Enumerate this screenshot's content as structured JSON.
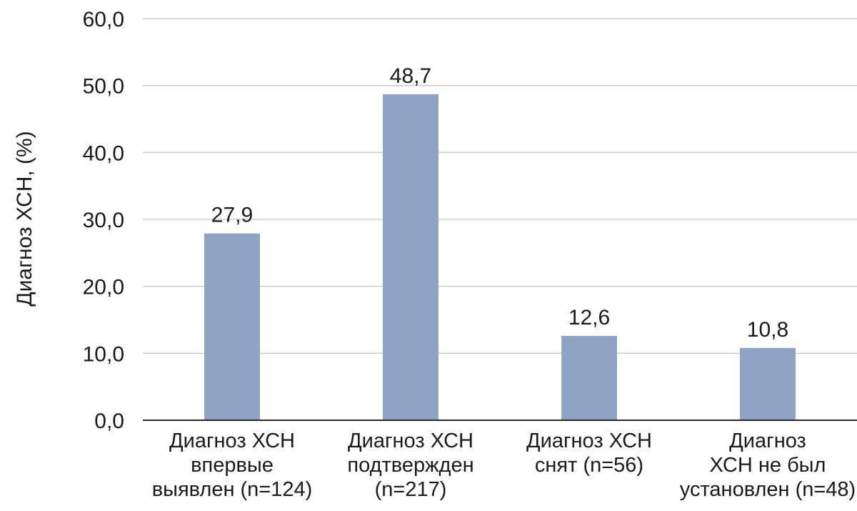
{
  "chart_data": {
    "type": "bar",
    "categories": [
      [
        "Диагноз ХСН",
        "впервые",
        "выявлен (n=124)"
      ],
      [
        "Диагноз ХСН",
        "подтвержден",
        "(n=217)"
      ],
      [
        "Диагноз ХСН",
        "снят (n=56)"
      ],
      [
        "Диагноз",
        "ХСН не был",
        "установлен (n=48)"
      ]
    ],
    "values": [
      27.9,
      48.7,
      12.6,
      10.8
    ],
    "value_labels": [
      "27,9",
      "48,7",
      "12,6",
      "10,8"
    ],
    "ylabel": "Диагноз ХСН, (%)",
    "xlabel": "",
    "ylim": [
      0,
      60
    ],
    "yticks": [
      0,
      10,
      20,
      30,
      40,
      50,
      60
    ],
    "ytick_labels": [
      "0,0",
      "10,0",
      "20,0",
      "30,0",
      "40,0",
      "50,0",
      "60,0"
    ],
    "grid": true,
    "bar_color": "#8ea3c6"
  }
}
